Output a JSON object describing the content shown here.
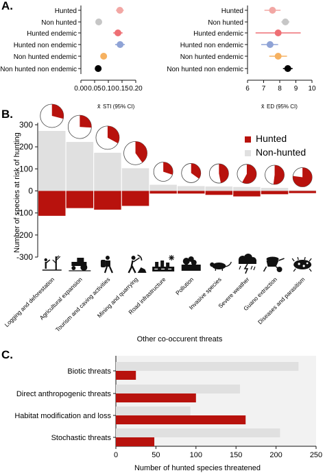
{
  "colors": {
    "hunted": "#b8120d",
    "nonhunted": "#e0e0e0",
    "axis": "#111111",
    "grid": "#f2f2f2"
  },
  "chart_data": [
    {
      "panel": "A.",
      "type": "scatter",
      "xlabel": "STI (95% CI)",
      "xlabel_prefix": "x̄",
      "categories": [
        "Hunted",
        "Non hunted",
        "Hunted endemic",
        "Hunted non endemic",
        "Non hunted endemic",
        "Non hunted non endemic"
      ],
      "xticks": [
        "0.00",
        "0.05",
        "0.10",
        "0.15",
        "0.20"
      ],
      "xlim": [
        0,
        0.2
      ],
      "points": [
        {
          "category": "Hunted",
          "x": 0.142,
          "lo": 0.128,
          "hi": 0.156,
          "color": "#f2a7a4"
        },
        {
          "category": "Non hunted",
          "x": 0.065,
          "lo": 0.06,
          "hi": 0.07,
          "color": "#c6c6c6"
        },
        {
          "category": "Hunted endemic",
          "x": 0.135,
          "lo": 0.118,
          "hi": 0.152,
          "color": "#ee6f74"
        },
        {
          "category": "Hunted non endemic",
          "x": 0.143,
          "lo": 0.125,
          "hi": 0.16,
          "color": "#8fa3d6"
        },
        {
          "category": "Non hunted endemic",
          "x": 0.083,
          "lo": 0.075,
          "hi": 0.092,
          "color": "#f6b160"
        },
        {
          "category": "Non hunted non endemic",
          "x": 0.063,
          "lo": 0.059,
          "hi": 0.067,
          "color": "#000000"
        }
      ]
    },
    {
      "type": "scatter",
      "xlabel": "ED (95% CI)",
      "xlabel_prefix": "x̄",
      "categories": [
        "Hunted",
        "Non hunted",
        "Hunted endemic",
        "Hunted non endemic",
        "Non hunted endemic",
        "Non hunted non endemic"
      ],
      "xticks": [
        "6",
        "7",
        "8",
        "9",
        "10"
      ],
      "xlim": [
        6,
        10
      ],
      "points": [
        {
          "category": "Hunted",
          "x": 7.55,
          "lo": 7.05,
          "hi": 8.05,
          "color": "#f2a7a4"
        },
        {
          "category": "Non hunted",
          "x": 8.35,
          "lo": 8.1,
          "hi": 8.6,
          "color": "#c6c6c6"
        },
        {
          "category": "Hunted endemic",
          "x": 7.9,
          "lo": 6.5,
          "hi": 9.3,
          "color": "#ee6f74"
        },
        {
          "category": "Hunted non endemic",
          "x": 7.4,
          "lo": 6.85,
          "hi": 7.9,
          "color": "#8fa3d6"
        },
        {
          "category": "Non hunted endemic",
          "x": 7.9,
          "lo": 7.35,
          "hi": 8.45,
          "color": "#f6b160"
        },
        {
          "category": "Non hunted non endemic",
          "x": 8.5,
          "lo": 8.2,
          "hi": 8.8,
          "color": "#000000"
        }
      ]
    },
    {
      "panel": "B.",
      "type": "bar",
      "ylabel": "Number of species at risk of hunting",
      "xlabel": "Other co-occurent threats",
      "ylim": [
        -300,
        300
      ],
      "yticks": [
        "300",
        "200",
        "100",
        "0",
        "-100",
        "-200",
        "-300"
      ],
      "categories": [
        "Logging and deforestation",
        "Agricultural expansion",
        "Tourism and caving activities",
        "Mining and quarrying",
        "Road infrastructure",
        "Pollution",
        "Invasive species",
        "Severe weather",
        "Guano extraction",
        "Diseases and parasitism"
      ],
      "icons": [
        "logging-icon",
        "tractor-icon",
        "caver-icon",
        "miner-icon",
        "road-icon",
        "pollution-icon",
        "rat-icon",
        "storm-icon",
        "wheelbarrow-icon",
        "parasite-icon"
      ],
      "series": [
        {
          "name": "Non-hunted",
          "values": [
            272,
            222,
            173,
            103,
            28,
            22,
            20,
            18,
            14,
            3
          ]
        },
        {
          "name": "Hunted",
          "values": [
            -113,
            -78,
            -85,
            -68,
            -12,
            -12,
            -18,
            -25,
            -15,
            -10
          ]
        }
      ],
      "pie_hunted_fraction": [
        0.29,
        0.26,
        0.33,
        0.4,
        0.3,
        0.35,
        0.47,
        0.58,
        0.52,
        0.77
      ],
      "legend": [
        "Hunted",
        "Non-hunted"
      ],
      "legend_position": "top-right"
    },
    {
      "panel": "C.",
      "type": "bar",
      "orientation": "horizontal",
      "xlabel": "Number of hunted species threatened",
      "xlim": [
        0,
        250
      ],
      "xticks": [
        "0",
        "50",
        "100",
        "150",
        "200",
        "250"
      ],
      "categories": [
        "Biotic threats",
        "Direct anthropogenic threats",
        "Habitat modification and loss",
        "Stochastic threats"
      ],
      "series": [
        {
          "values": [
            228,
            155,
            93,
            205
          ]
        },
        {
          "values": [
            25,
            100,
            162,
            48
          ]
        }
      ]
    }
  ]
}
